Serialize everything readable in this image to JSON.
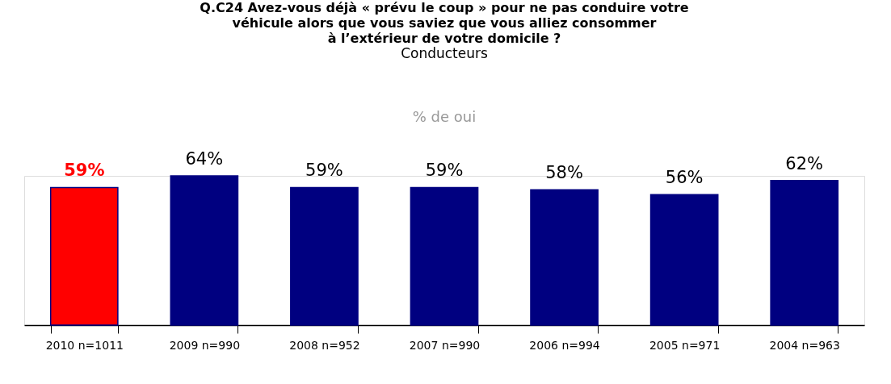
{
  "chart_data": {
    "type": "bar",
    "title": "Q.C24 Avez-vous déjà « prévu le coup » pour ne pas conduire votre\nvéhicule alors que vous saviez que vous alliez consommer\nà l’extérieur de votre domicile ?",
    "subtitle": "Conducteurs",
    "annotations": [
      "% de oui"
    ],
    "categories": [
      "2010 n=1011",
      "2009 n=990",
      "2008 n=952",
      "2007 n=990",
      "2006 n=994",
      "2005 n=971",
      "2004 n=963"
    ],
    "values": [
      59,
      64,
      59,
      59,
      58,
      56,
      62
    ],
    "colors": [
      "#ff0000",
      "#000080",
      "#000080",
      "#000080",
      "#000080",
      "#000080",
      "#000080"
    ],
    "value_labels": [
      "59%",
      "64%",
      "59%",
      "59%",
      "58%",
      "56%",
      "62%"
    ],
    "grid": false
  }
}
